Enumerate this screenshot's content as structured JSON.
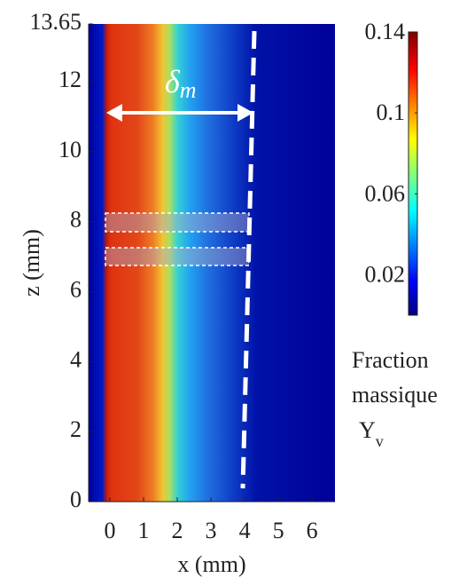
{
  "chart_data": {
    "type": "heatmap",
    "xlabel": "x (mm)",
    "ylabel": "z (mm)",
    "xlim": [
      -0.63,
      6.68
    ],
    "xticks": [
      0,
      1,
      2,
      3,
      4,
      5,
      6
    ],
    "ylim": [
      0,
      13.65
    ],
    "yticks": [
      0,
      2,
      4,
      6,
      8,
      10,
      12,
      13.65
    ],
    "colorbar": {
      "clim": [
        0,
        0.14
      ],
      "ticks": [
        0.02,
        0.06,
        0.1,
        0.14
      ],
      "label": [
        "Fraction",
        "massique"
      ],
      "variable": "Y",
      "variable_subscript": "v"
    },
    "annotation": {
      "symbol": "δ",
      "subscript": "m"
    }
  }
}
